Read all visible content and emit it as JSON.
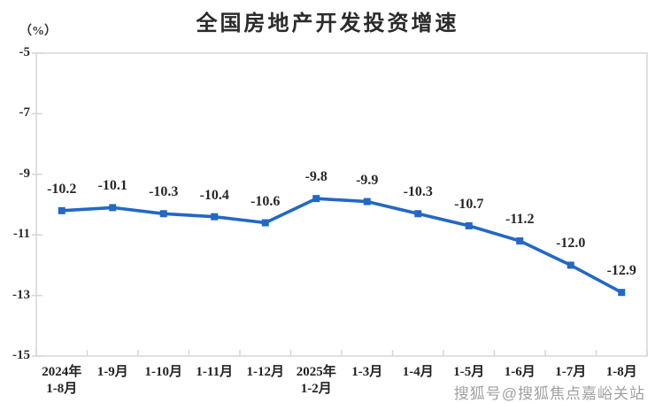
{
  "chart_data": {
    "type": "line",
    "title": "全国房地产开发投资增速",
    "unit_label": "（%）",
    "categories": [
      "2024年\n1-8月",
      "1-9月",
      "1-10月",
      "1-11月",
      "1-12月",
      "2025年\n1-2月",
      "1-3月",
      "1-4月",
      "1-5月",
      "1-6月",
      "1-7月",
      "1-8月"
    ],
    "values": [
      -10.2,
      -10.1,
      -10.3,
      -10.4,
      -10.6,
      -9.8,
      -9.9,
      -10.3,
      -10.7,
      -11.2,
      -12.0,
      -12.9
    ],
    "data_labels": [
      "-10.2",
      "-10.1",
      "-10.3",
      "-10.4",
      "-10.6",
      "-9.8",
      "-9.9",
      "-10.3",
      "-10.7",
      "-11.2",
      "-12.0",
      "-12.9"
    ],
    "xlabel": "",
    "ylabel": "(%)",
    "ylim": [
      -15,
      -5
    ],
    "yticks": [
      -5,
      -7,
      -9,
      -11,
      -13,
      -15
    ],
    "grid": false,
    "legend": null,
    "line_color": "#2368C4",
    "marker": "square",
    "axis_color": "#d6d6d6",
    "label_color": "#272727"
  },
  "watermark": {
    "text": "搜狐号@搜狐焦点嘉峪关站"
  }
}
